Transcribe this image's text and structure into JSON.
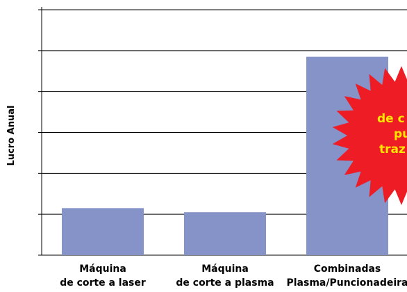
{
  "chart_data": {
    "type": "bar",
    "ylabel": "Lucro Anual",
    "categories": [
      [
        "Máquina",
        "de corte a laser"
      ],
      [
        "Máquina",
        "de corte a plasma"
      ],
      [
        "Combinadas",
        "Plasma/Puncionadeira"
      ]
    ],
    "values": [
      1.15,
      1.05,
      4.85
    ],
    "ylim": [
      0,
      6
    ],
    "yticks": [
      0,
      1,
      2,
      3,
      4,
      5,
      6
    ],
    "y_tick_labels_shown": false,
    "grid": true,
    "bar_color": "#8593c9",
    "annotation": {
      "shape": "starburst",
      "color": "#ee1c24",
      "text_color": "#ffe600",
      "visible_lines": [
        "de c",
        "pu",
        "traz"
      ]
    }
  }
}
